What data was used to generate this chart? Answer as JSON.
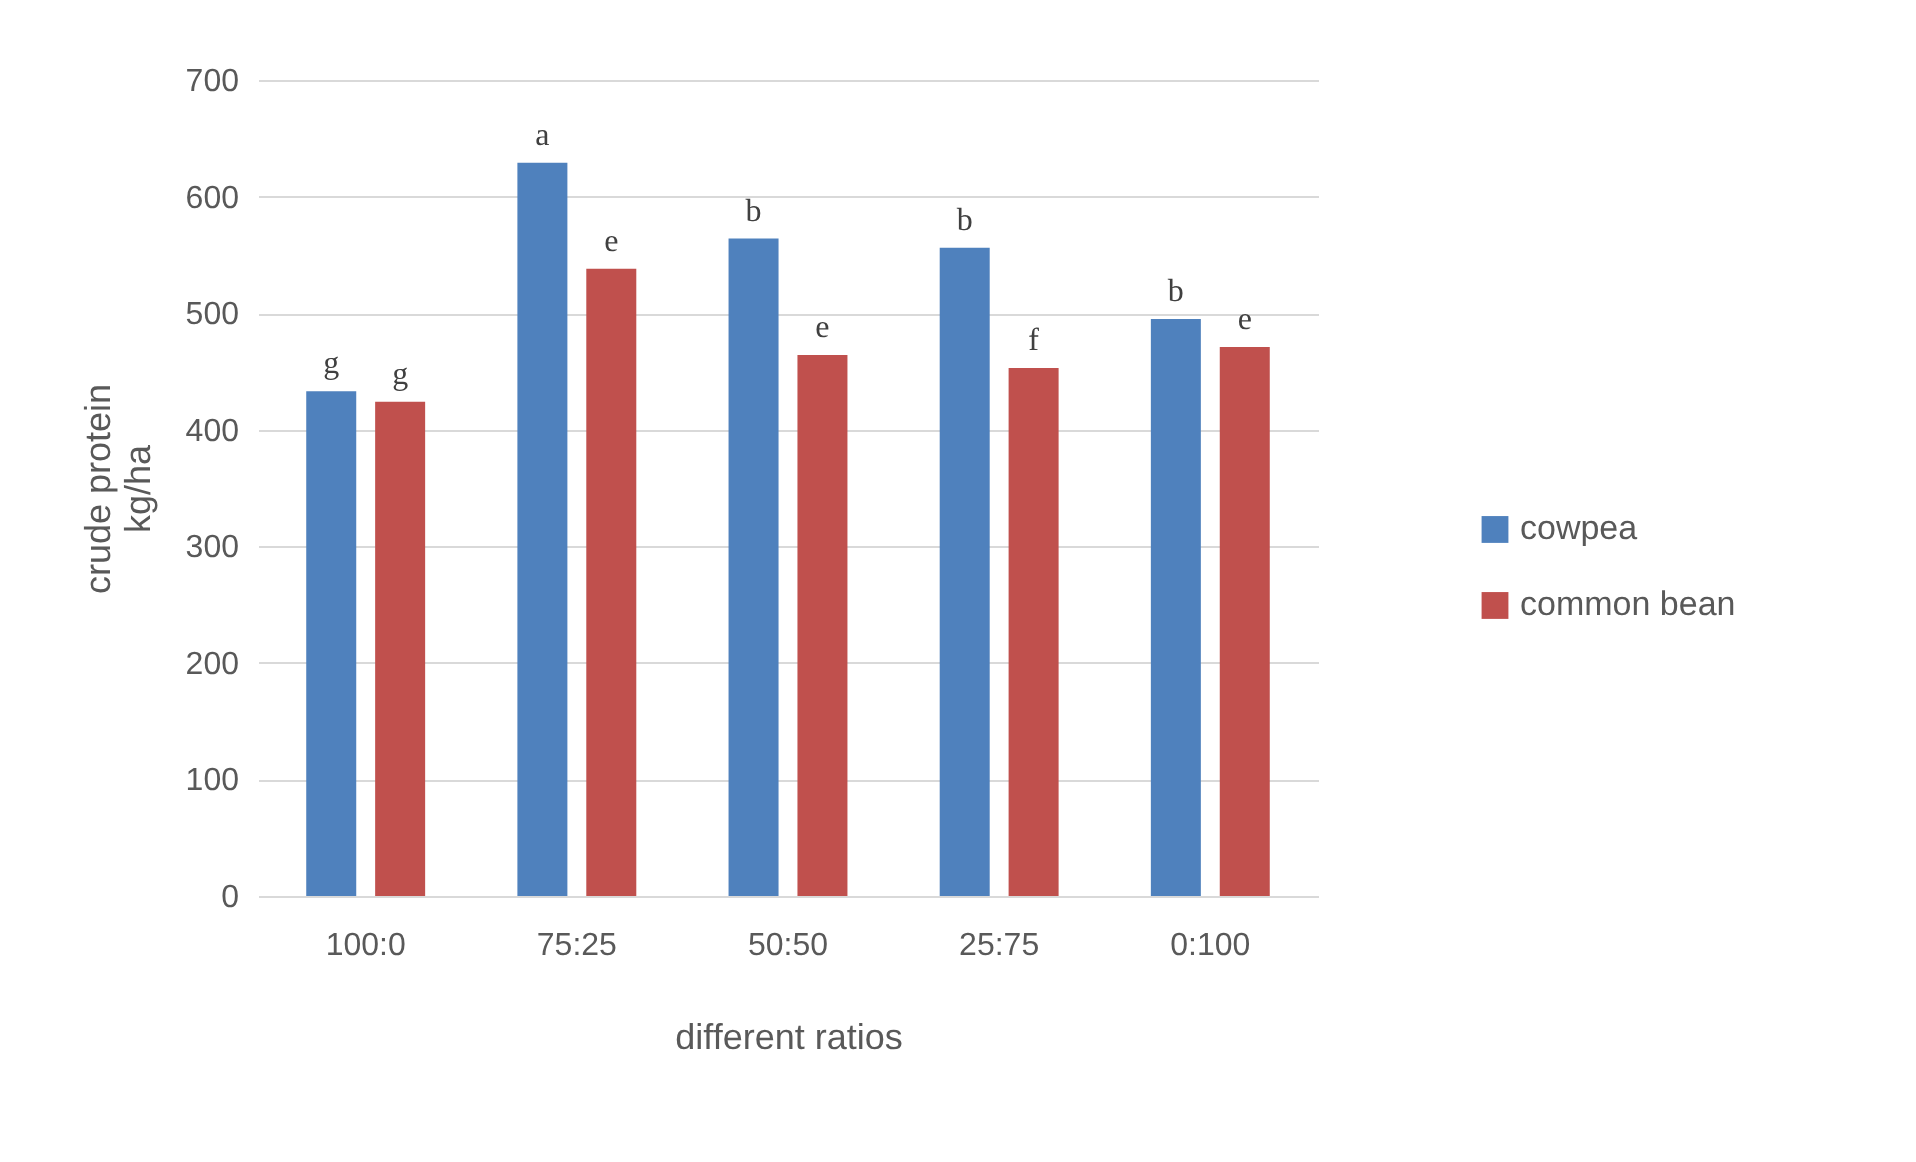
{
  "chart_data": {
    "type": "bar",
    "xlabel": "different ratios",
    "ylabel": "crude protein kg/ha",
    "categories": [
      "100:0",
      "75:25",
      "50:50",
      "25:75",
      "0:100"
    ],
    "series": [
      {
        "name": "cowpea",
        "color": "#4f81bd",
        "values": [
          433,
          629,
          564,
          556,
          495
        ],
        "value_labels": [
          "g",
          "a",
          "b",
          "b",
          "b"
        ]
      },
      {
        "name": "common bean",
        "color": "#c0504d",
        "values": [
          424,
          538,
          464,
          453,
          471
        ],
        "value_labels": [
          "g",
          "e",
          "e",
          "f",
          "e"
        ]
      }
    ],
    "ylim": [
      0,
      700
    ],
    "yticks": [
      0,
      100,
      200,
      300,
      400,
      500,
      600,
      700
    ],
    "grid": "y",
    "legend": "right"
  }
}
